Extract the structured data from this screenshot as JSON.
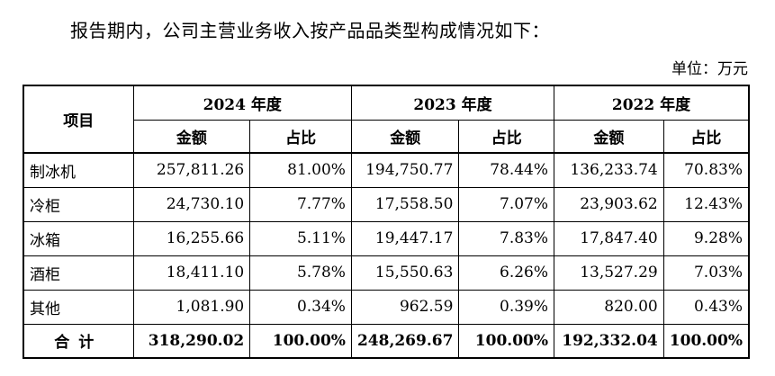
{
  "intro": "报告期内，公司主营业务收入按产品品类型构成情况如下：",
  "unit": "单位：万元",
  "table": {
    "item_header": "项目",
    "years": [
      "2024 年度",
      "2023 年度",
      "2022 年度"
    ],
    "sub_headers": [
      "金额",
      "占比",
      "金额",
      "占比",
      "金额",
      "占比"
    ],
    "rows": [
      {
        "name": "制冰机",
        "cells": [
          "257,811.26",
          "81.00%",
          "194,750.77",
          "78.44%",
          "136,233.74",
          "70.83%"
        ]
      },
      {
        "name": "冷柜",
        "cells": [
          "24,730.10",
          "7.77%",
          "17,558.50",
          "7.07%",
          "23,903.62",
          "12.43%"
        ]
      },
      {
        "name": "冰箱",
        "cells": [
          "16,255.66",
          "5.11%",
          "19,447.17",
          "7.83%",
          "17,847.40",
          "9.28%"
        ]
      },
      {
        "name": "酒柜",
        "cells": [
          "18,411.10",
          "5.78%",
          "15,550.63",
          "6.26%",
          "13,527.29",
          "7.03%"
        ]
      },
      {
        "name": "其他",
        "cells": [
          "1,081.90",
          "0.34%",
          "962.59",
          "0.39%",
          "820.00",
          "0.43%"
        ]
      }
    ],
    "total": {
      "name": "合计",
      "cells": [
        "318,290.02",
        "100.00%",
        "248,269.67",
        "100.00%",
        "192,332.04",
        "100.00%"
      ]
    }
  }
}
